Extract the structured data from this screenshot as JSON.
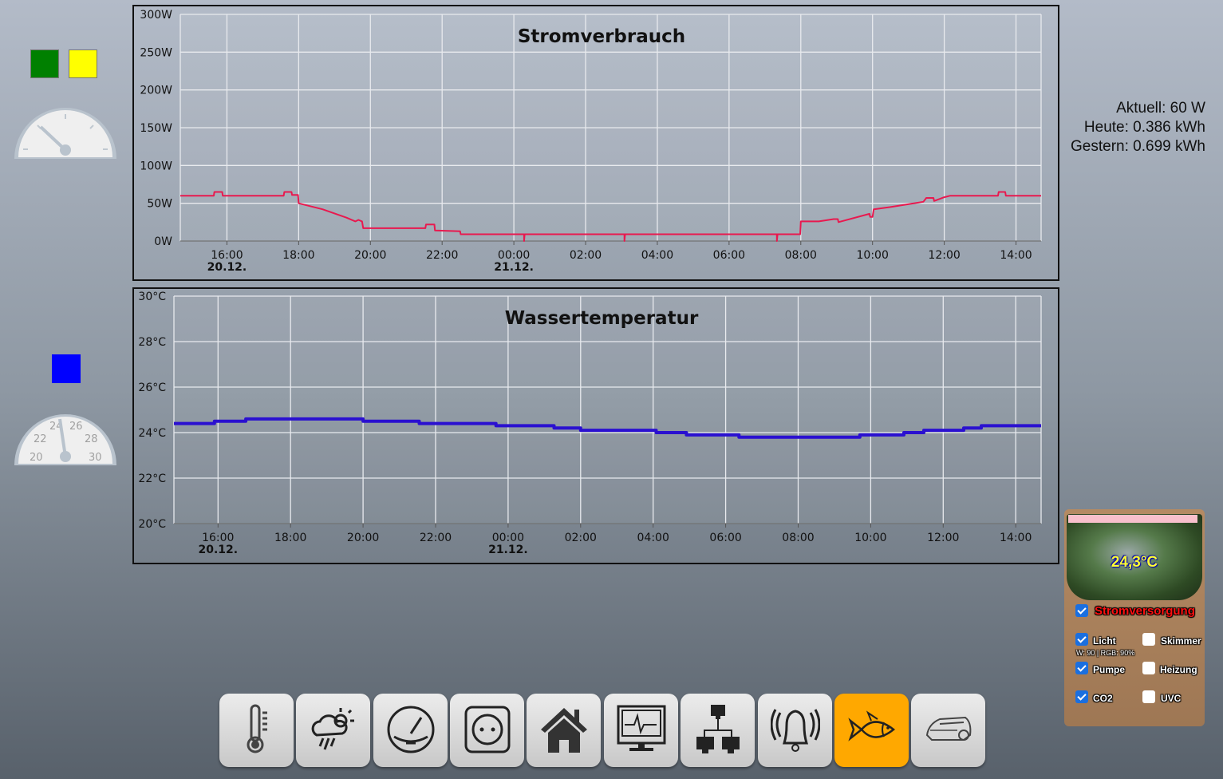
{
  "left": {
    "swatches_top": [
      "#008000",
      "#ffff00"
    ],
    "swatch_bottom": "#0000ff",
    "gauge_power": {
      "ticks": []
    },
    "gauge_temp": {
      "labels": [
        "20",
        "22",
        "24",
        "26",
        "28",
        "30"
      ],
      "value": 24.3
    }
  },
  "info": {
    "current": "Aktuell: 60 W",
    "today": "Heute: 0.386 kWh",
    "yesterday": "Gestern: 0.699 kWh"
  },
  "chart_data": [
    {
      "type": "line",
      "title": "Stromverbrauch",
      "xlabel": "",
      "ylabel": "",
      "ylim": [
        0,
        300
      ],
      "yticks": [
        "0W",
        "50W",
        "100W",
        "150W",
        "200W",
        "250W",
        "300W"
      ],
      "ytick_values": [
        0,
        50,
        100,
        150,
        200,
        250,
        300
      ],
      "xlim": [
        "20.12. 14:42",
        "21.12. 14:42"
      ],
      "xticks": [
        {
          "t": "20.12. 16:00",
          "label": "16:00",
          "date": "20.12."
        },
        {
          "t": "20.12. 18:00",
          "label": "18:00"
        },
        {
          "t": "20.12. 20:00",
          "label": "20:00"
        },
        {
          "t": "20.12. 22:00",
          "label": "22:00"
        },
        {
          "t": "21.12. 00:00",
          "label": "00:00",
          "date": "21.12."
        },
        {
          "t": "21.12. 02:00",
          "label": "02:00"
        },
        {
          "t": "21.12. 04:00",
          "label": "04:00"
        },
        {
          "t": "21.12. 06:00",
          "label": "06:00"
        },
        {
          "t": "21.12. 08:00",
          "label": "08:00"
        },
        {
          "t": "21.12. 10:00",
          "label": "10:00"
        },
        {
          "t": "21.12. 12:00",
          "label": "12:00"
        },
        {
          "t": "21.12. 14:00",
          "label": "14:00"
        }
      ],
      "grid": true,
      "color": "#e8194f",
      "series": [
        {
          "points": [
            [
              "20.12. 14:42",
              60
            ],
            [
              "20.12. 15:38",
              60
            ],
            [
              "20.12. 15:39",
              65
            ],
            [
              "20.12. 15:52",
              65
            ],
            [
              "20.12. 15:53",
              60
            ],
            [
              "20.12. 17:35",
              60
            ],
            [
              "20.12. 17:36",
              65
            ],
            [
              "20.12. 17:48",
              65
            ],
            [
              "20.12. 17:49",
              61
            ],
            [
              "20.12. 17:59",
              61
            ],
            [
              "20.12. 18:00",
              50
            ],
            [
              "20.12. 18:40",
              42
            ],
            [
              "20.12. 19:20",
              31
            ],
            [
              "20.12. 19:35",
              26
            ],
            [
              "20.12. 19:40",
              28
            ],
            [
              "20.12. 19:46",
              26
            ],
            [
              "20.12. 19:48",
              17
            ],
            [
              "20.12. 21:32",
              17
            ],
            [
              "20.12. 21:33",
              22
            ],
            [
              "20.12. 21:47",
              22
            ],
            [
              "20.12. 21:48",
              14
            ],
            [
              "20.12. 22:30",
              13
            ],
            [
              "20.12. 22:31",
              9
            ],
            [
              "21.12. 00:17",
              9
            ],
            [
              "21.12. 00:17",
              0
            ],
            [
              "21.12. 00:18",
              9
            ],
            [
              "21.12. 03:05",
              9
            ],
            [
              "21.12. 03:05",
              0
            ],
            [
              "21.12. 03:06",
              9
            ],
            [
              "21.12. 07:20",
              9
            ],
            [
              "21.12. 07:20",
              0
            ],
            [
              "21.12. 07:21",
              9
            ],
            [
              "21.12. 07:59",
              9
            ],
            [
              "21.12. 08:00",
              26
            ],
            [
              "21.12. 08:30",
              26
            ],
            [
              "21.12. 08:55",
              29
            ],
            [
              "21.12. 09:02",
              29
            ],
            [
              "21.12. 09:03",
              25
            ],
            [
              "21.12. 09:55",
              36
            ],
            [
              "21.12. 09:56",
              32
            ],
            [
              "21.12. 10:00",
              32
            ],
            [
              "21.12. 10:02",
              42
            ],
            [
              "21.12. 10:30",
              45
            ],
            [
              "21.12. 11:25",
              52
            ],
            [
              "21.12. 11:30",
              57
            ],
            [
              "21.12. 11:42",
              57
            ],
            [
              "21.12. 11:43",
              53
            ],
            [
              "21.12. 12:00",
              58
            ],
            [
              "21.12. 12:10",
              60
            ],
            [
              "21.12. 13:30",
              60
            ],
            [
              "21.12. 13:31",
              65
            ],
            [
              "21.12. 13:42",
              65
            ],
            [
              "21.12. 13:43",
              60
            ],
            [
              "21.12. 14:42",
              60
            ]
          ]
        }
      ]
    },
    {
      "type": "line",
      "title": "Wassertemperatur",
      "xlabel": "",
      "ylabel": "",
      "ylim": [
        20,
        30
      ],
      "yticks": [
        "20°C",
        "22°C",
        "24°C",
        "26°C",
        "28°C",
        "30°C"
      ],
      "ytick_values": [
        20,
        22,
        24,
        26,
        28,
        30
      ],
      "xlim": [
        "20.12. 14:47",
        "21.12. 14:42"
      ],
      "xticks": [
        {
          "t": "20.12. 16:00",
          "label": "16:00",
          "date": "20.12."
        },
        {
          "t": "20.12. 18:00",
          "label": "18:00"
        },
        {
          "t": "20.12. 20:00",
          "label": "20:00"
        },
        {
          "t": "20.12. 22:00",
          "label": "22:00"
        },
        {
          "t": "21.12. 00:00",
          "label": "00:00",
          "date": "21.12."
        },
        {
          "t": "21.12. 02:00",
          "label": "02:00"
        },
        {
          "t": "21.12. 04:00",
          "label": "04:00"
        },
        {
          "t": "21.12. 06:00",
          "label": "06:00"
        },
        {
          "t": "21.12. 08:00",
          "label": "08:00"
        },
        {
          "t": "21.12. 10:00",
          "label": "10:00"
        },
        {
          "t": "21.12. 12:00",
          "label": "12:00"
        },
        {
          "t": "21.12. 14:00",
          "label": "14:00"
        }
      ],
      "grid": true,
      "color": "#2a10d0",
      "series": [
        {
          "points": [
            [
              "20.12. 14:47",
              24.4
            ],
            [
              "20.12. 15:54",
              24.4
            ],
            [
              "20.12. 15:54",
              24.5
            ],
            [
              "20.12. 16:46",
              24.5
            ],
            [
              "20.12. 16:46",
              24.6
            ],
            [
              "20.12. 20:00",
              24.6
            ],
            [
              "20.12. 20:00",
              24.5
            ],
            [
              "20.12. 21:33",
              24.5
            ],
            [
              "20.12. 21:33",
              24.4
            ],
            [
              "20.12. 23:40",
              24.4
            ],
            [
              "20.12. 23:40",
              24.3
            ],
            [
              "21.12. 01:16",
              24.3
            ],
            [
              "21.12. 01:16",
              24.2
            ],
            [
              "21.12. 02:00",
              24.2
            ],
            [
              "21.12. 02:00",
              24.1
            ],
            [
              "21.12. 04:05",
              24.1
            ],
            [
              "21.12. 04:05",
              24.0
            ],
            [
              "21.12. 04:55",
              24.0
            ],
            [
              "21.12. 04:55",
              23.9
            ],
            [
              "21.12. 06:22",
              23.9
            ],
            [
              "21.12. 06:22",
              23.8
            ],
            [
              "21.12. 09:42",
              23.8
            ],
            [
              "21.12. 09:42",
              23.9
            ],
            [
              "21.12. 10:55",
              23.9
            ],
            [
              "21.12. 10:55",
              24.0
            ],
            [
              "21.12. 11:28",
              24.0
            ],
            [
              "21.12. 11:28",
              24.1
            ],
            [
              "21.12. 12:34",
              24.1
            ],
            [
              "21.12. 12:34",
              24.2
            ],
            [
              "21.12. 13:03",
              24.2
            ],
            [
              "21.12. 13:03",
              24.3
            ],
            [
              "21.12. 14:42",
              24.3
            ]
          ]
        }
      ]
    }
  ],
  "aquarium": {
    "temperature": "24,3°C",
    "power_label": "Stromversorgung",
    "power_on": true,
    "switches": [
      {
        "label": "Licht",
        "on": true
      },
      {
        "label": "Skimmer",
        "on": false
      },
      {
        "label": "Pumpe",
        "on": true
      },
      {
        "label": "Heizung",
        "on": false
      },
      {
        "label": "CO2",
        "on": true
      },
      {
        "label": "UVC",
        "on": false
      }
    ],
    "light_info": "W: 90 | RGB: 90%"
  },
  "nav": {
    "items": [
      {
        "icon": "thermometer-icon"
      },
      {
        "icon": "weather-icon"
      },
      {
        "icon": "gauge-icon"
      },
      {
        "icon": "power-socket-icon"
      },
      {
        "icon": "home-icon"
      },
      {
        "icon": "monitor-icon"
      },
      {
        "icon": "network-icon"
      },
      {
        "icon": "alarm-bell-icon"
      },
      {
        "icon": "fish-icon",
        "active": true
      },
      {
        "icon": "robot-mower-icon"
      }
    ],
    "active_color": "#ffa800"
  }
}
